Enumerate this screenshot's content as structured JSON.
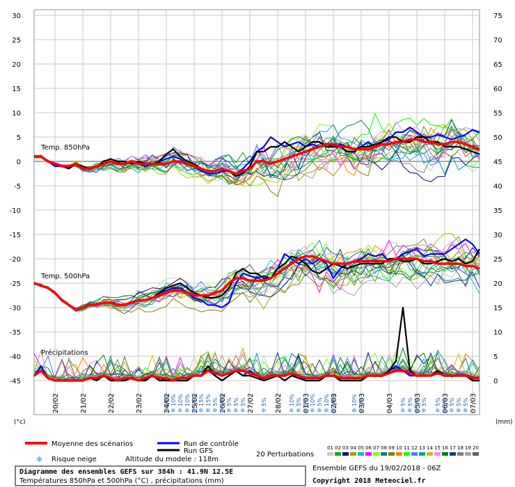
{
  "chart_data": {
    "type": "line",
    "title": "Diagramme des ensembles GEFS sur 384h : 41.9N 12.5E",
    "subtitle": "Températures 850hPa et 500hPa (°C) , précipitations (mm)",
    "run_info": "Ensemble GEFS du 19/02/2018 - 06Z",
    "copyright": "Copyright 2018 Meteociel.fr",
    "model_altitude": "Altitude du modele : 118m",
    "left_axis_unit": "(°c)",
    "right_axis_unit": "(mm)",
    "left_axis": {
      "range": [
        -45,
        30
      ],
      "ticks": [
        30,
        25,
        20,
        15,
        10,
        5,
        0,
        -5,
        -10,
        -15,
        -20,
        -25,
        -30,
        -35,
        -40,
        -45
      ]
    },
    "right_axis": {
      "range": [
        0,
        75
      ],
      "ticks": [
        75,
        70,
        65,
        60,
        55,
        50,
        45,
        40,
        35,
        30,
        25,
        20,
        15,
        10,
        5,
        0
      ]
    },
    "x_axis": {
      "start": "19/02 06Z",
      "step_hours": 6,
      "steps": 64,
      "date_labels": [
        "20/02",
        "21/02",
        "22/02",
        "23/02",
        "24/02",
        "25/02",
        "26/02",
        "27/02",
        "28/02",
        "01/03",
        "02/03",
        "03/03",
        "04/03",
        "05/03",
        "06/03",
        "07/03"
      ]
    },
    "panels": {
      "t850": "Temp. 850hPa",
      "t500": "Temp. 500hPa",
      "precip": "Précipitations"
    },
    "legend": {
      "mean": "Moyenne des scénarios",
      "control": "Run de contrôle",
      "gfs": "Run GFS",
      "perturbations": "20 Perturbations",
      "snow": "Risque neige"
    },
    "colors": {
      "mean": "#ff0000",
      "control": "#0000ff",
      "gfs": "#000000",
      "grid": "#c8c8c8",
      "zero_line": "#8c8c8c",
      "snow": "#3a8fd8"
    },
    "perturbation_labels": [
      "01",
      "02",
      "03",
      "04",
      "05",
      "06",
      "07",
      "08",
      "09",
      "10",
      "11",
      "12",
      "13",
      "14",
      "15",
      "16",
      "17",
      "18",
      "19",
      "20"
    ],
    "perturbation_colors": [
      "#c8c8c8",
      "#00b000",
      "#000080",
      "#a0a000",
      "#00c0c0",
      "#ff00ff",
      "#80ff00",
      "#008080",
      "#808000",
      "#ff8000",
      "#00ff00",
      "#4080ff",
      "#00a0a0",
      "#c0c000",
      "#ff80ff",
      "#008000",
      "#004080",
      "#808080",
      "#a0a0a0",
      "#606060"
    ],
    "series": [
      {
        "name": "Moyenne des scénarios",
        "role": "t850",
        "values": [
          1,
          1,
          0,
          -0.5,
          -1,
          -1,
          -0.5,
          -1.5,
          -1.5,
          -1,
          -0.5,
          0,
          -0.5,
          -0.5,
          0,
          -0.5,
          -0.5,
          -0.5,
          -0.5,
          -0.5,
          0,
          0,
          -0.5,
          -1,
          -1.5,
          -2,
          -2,
          -1.5,
          -2,
          -2.5,
          -2,
          -1.5,
          0,
          0,
          -0.5,
          0,
          0.5,
          1,
          1.5,
          2,
          2.5,
          3,
          3.5,
          3.5,
          3,
          3,
          2.5,
          2.5,
          2.5,
          3,
          3.5,
          3.5,
          4,
          4,
          4.5,
          4.5,
          4,
          4,
          3.5,
          3.5,
          4,
          4,
          3.5,
          3,
          2.5
        ]
      },
      {
        "name": "Run de contrôle",
        "role": "t850",
        "values": [
          1,
          1,
          0,
          -1,
          -1,
          -1,
          -0.5,
          -1.5,
          -1.5,
          -1,
          -0.5,
          0,
          -0.5,
          -0.5,
          0,
          -0.5,
          -1,
          -0.5,
          0,
          0.5,
          1,
          0.5,
          -0.5,
          -1,
          -2,
          -2.5,
          -2.5,
          -2,
          -2,
          -2.5,
          -1.5,
          0,
          2,
          3,
          5,
          4,
          3,
          3.5,
          4,
          3,
          3.5,
          3,
          3.5,
          3,
          3.5,
          3,
          2.5,
          3,
          4,
          3,
          4,
          4.5,
          6,
          6,
          7,
          6,
          5,
          5,
          5.5,
          5,
          4.5,
          5,
          5.5,
          6.5,
          6
        ]
      },
      {
        "name": "Run GFS",
        "role": "t850",
        "values": [
          1,
          1,
          0,
          -0.5,
          -1,
          -1.5,
          -0.5,
          -1,
          -1.5,
          -1,
          0,
          0.5,
          0,
          0,
          -0.5,
          0,
          -0.5,
          -0.5,
          0,
          1.5,
          2.5,
          1,
          0,
          -0.5,
          -1.5,
          -2,
          -2,
          -1.5,
          -2,
          -3,
          -2.5,
          -1,
          2,
          2,
          3,
          3,
          4,
          3,
          2,
          3,
          4,
          4,
          3,
          3,
          3,
          2,
          2,
          3,
          3,
          3.5,
          4,
          5,
          5,
          4,
          4,
          5,
          5,
          4,
          4,
          3,
          3,
          3,
          2.5,
          2,
          1.5
        ]
      },
      {
        "name": "Moyenne des scénarios",
        "role": "t500",
        "values": [
          -25,
          -25.5,
          -26,
          -27,
          -28.5,
          -29.5,
          -30.5,
          -30,
          -29.5,
          -29.5,
          -29,
          -29,
          -29.5,
          -29.5,
          -29,
          -28.5,
          -28.5,
          -28,
          -27.5,
          -27,
          -26.5,
          -26.5,
          -27,
          -27.5,
          -27.5,
          -27.5,
          -27,
          -26.5,
          -25,
          -24,
          -24,
          -24.5,
          -24.5,
          -24.5,
          -24,
          -23,
          -22,
          -21,
          -20,
          -19.5,
          -19.5,
          -20,
          -20.5,
          -21,
          -21,
          -21,
          -20.5,
          -20.5,
          -20.5,
          -20.5,
          -20.5,
          -20.5,
          -20,
          -20,
          -20,
          -20,
          -20.5,
          -20.5,
          -21,
          -21,
          -21,
          -21,
          -21.5,
          -21.5,
          -22
        ]
      },
      {
        "name": "Run de contrôle",
        "role": "t500",
        "values": [
          -25,
          -25.5,
          -26,
          -27,
          -28.5,
          -29.5,
          -30.5,
          -30,
          -29.5,
          -29.5,
          -29,
          -29,
          -29.5,
          -29.5,
          -29,
          -28.5,
          -28.5,
          -28,
          -27,
          -26.5,
          -26,
          -26,
          -27,
          -28,
          -28.5,
          -29.5,
          -29.5,
          -30,
          -29,
          -25,
          -23,
          -23.5,
          -24,
          -23.5,
          -24,
          -22,
          -19,
          -20,
          -21,
          -20,
          -21,
          -20,
          -21,
          -24,
          -22,
          -21,
          -20.5,
          -20,
          -19,
          -19.5,
          -19,
          -20.5,
          -20,
          -19,
          -18.5,
          -18,
          -19.5,
          -19,
          -19,
          -19,
          -18,
          -17,
          -16,
          -17,
          -19
        ]
      },
      {
        "name": "Run GFS",
        "role": "t500",
        "values": [
          -25,
          -25.5,
          -26,
          -27,
          -28.5,
          -29.5,
          -30.5,
          -30,
          -29.5,
          -29.5,
          -29,
          -29,
          -29.5,
          -29.5,
          -29,
          -28.5,
          -28.5,
          -28,
          -27,
          -26,
          -25.5,
          -25,
          -26,
          -27,
          -27.5,
          -28,
          -28,
          -27.5,
          -26,
          -23,
          -22,
          -23,
          -23,
          -24,
          -24,
          -22,
          -21,
          -19.5,
          -20,
          -21,
          -22.5,
          -23,
          -22,
          -21,
          -21.5,
          -22,
          -21.5,
          -21,
          -21,
          -21,
          -21,
          -20,
          -20,
          -20.5,
          -20.5,
          -20,
          -21,
          -21,
          -20.5,
          -20,
          -20.5,
          -20,
          -21,
          -20.5,
          -18
        ]
      },
      {
        "name": "Moyenne des scénarios",
        "role": "precip",
        "values": [
          1,
          2,
          0.5,
          0,
          0,
          0,
          0,
          0,
          0.5,
          0.5,
          1,
          0.5,
          0,
          0.5,
          0.5,
          0,
          0.5,
          1,
          0.5,
          0.5,
          0,
          0.5,
          0.5,
          1,
          1,
          2,
          1.5,
          1,
          1.5,
          2,
          2,
          1.5,
          1,
          0.5,
          1,
          1,
          1,
          1.5,
          1,
          0.5,
          0.5,
          0.5,
          1,
          1,
          0.5,
          0.5,
          0.5,
          0.5,
          1,
          1,
          1,
          1.5,
          2,
          2,
          1.5,
          1,
          1,
          1,
          1.5,
          1,
          1,
          1,
          1,
          0.5,
          0.5
        ]
      },
      {
        "name": "Run de contrôle",
        "role": "precip",
        "values": [
          1,
          3,
          0.5,
          0,
          0,
          0,
          0,
          0,
          0.5,
          0,
          1,
          0,
          0,
          0,
          0.5,
          0,
          0,
          1,
          0.5,
          0,
          0,
          0,
          0,
          1,
          1,
          2,
          1,
          0,
          1,
          2,
          1,
          2,
          1,
          0,
          0.5,
          1,
          0,
          1,
          1,
          0,
          0,
          0,
          1,
          1,
          0,
          0,
          0,
          0,
          1,
          1,
          1,
          2,
          3,
          2,
          1,
          1,
          1,
          1,
          2,
          1,
          1,
          1,
          1,
          0,
          0
        ]
      },
      {
        "name": "Run GFS",
        "role": "precip",
        "values": [
          1,
          2,
          0.5,
          0,
          0,
          0,
          0,
          0,
          0.5,
          0,
          1,
          0,
          0,
          0,
          0.5,
          0,
          0,
          1,
          0,
          0,
          0,
          0,
          0,
          1,
          1,
          3,
          1,
          0,
          1,
          2,
          1,
          1,
          0.5,
          0,
          0.5,
          1,
          0,
          1,
          0.5,
          0,
          0,
          0,
          1,
          1,
          0,
          0,
          0,
          0,
          1,
          1,
          1,
          2,
          4,
          15,
          2,
          1,
          1,
          1,
          2,
          1,
          1,
          1,
          1,
          0,
          0
        ]
      }
    ],
    "snow_risk": [
      {
        "step": 19,
        "label": "10%"
      },
      {
        "step": 20,
        "label": "10%"
      },
      {
        "step": 21,
        "label": "10%"
      },
      {
        "step": 22,
        "label": "10%"
      },
      {
        "step": 23,
        "label": "15%"
      },
      {
        "step": 24,
        "label": "15%"
      },
      {
        "step": 25,
        "label": "15%"
      },
      {
        "step": 26,
        "label": "5%"
      },
      {
        "step": 27,
        "label": "10%"
      },
      {
        "step": 28,
        "label": "5%"
      },
      {
        "step": 29,
        "label": "5%"
      },
      {
        "step": 30,
        "label": "5%"
      },
      {
        "step": 33,
        "label": "5%"
      },
      {
        "step": 37,
        "label": "10%"
      },
      {
        "step": 38,
        "label": "5%"
      },
      {
        "step": 39,
        "label": "5%"
      },
      {
        "step": 40,
        "label": "10%"
      },
      {
        "step": 41,
        "label": "5%"
      },
      {
        "step": 42,
        "label": "10%"
      },
      {
        "step": 43,
        "label": "10%"
      },
      {
        "step": 46,
        "label": "10%"
      },
      {
        "step": 47,
        "label": "5%"
      },
      {
        "step": 53,
        "label": "5%"
      },
      {
        "step": 54,
        "label": "5%"
      },
      {
        "step": 55,
        "label": "5%"
      },
      {
        "step": 56,
        "label": "5%"
      },
      {
        "step": 58,
        "label": "5%"
      },
      {
        "step": 59,
        "label": "5%"
      },
      {
        "step": 60,
        "label": "5%"
      },
      {
        "step": 61,
        "label": "5%"
      },
      {
        "step": 62,
        "label": "5%"
      }
    ]
  }
}
